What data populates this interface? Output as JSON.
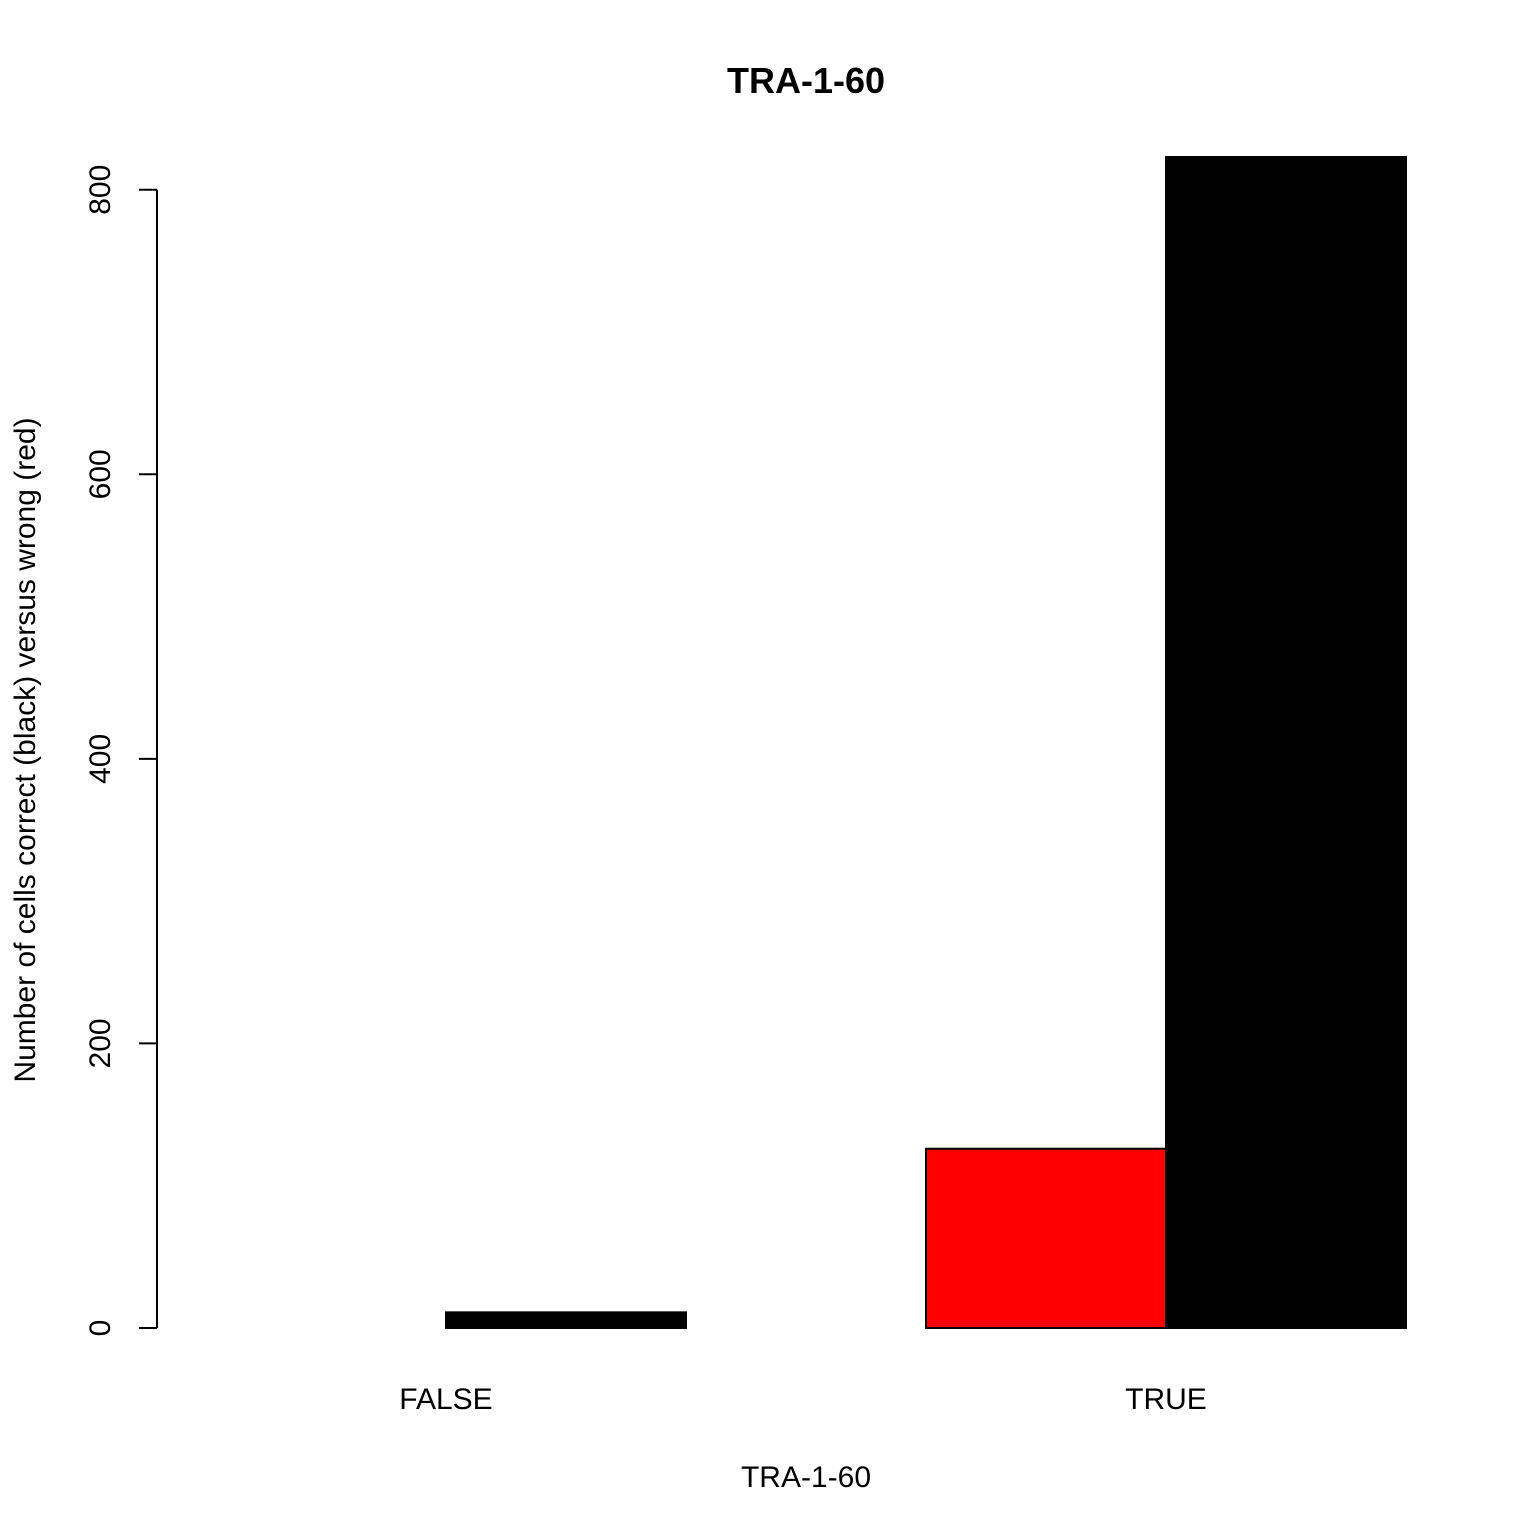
{
  "chart_data": {
    "type": "bar",
    "title": "TRA-1-60",
    "xlabel": "TRA-1-60",
    "ylabel": "Number of cells correct (black) versus wrong (red)",
    "categories": [
      "FALSE",
      "TRUE"
    ],
    "series": [
      {
        "color": "#ff0000",
        "values": [
          0,
          126
        ]
      },
      {
        "color": "#000000",
        "values": [
          11,
          823
        ]
      }
    ],
    "ylim": [
      0,
      823
    ],
    "yticks": [
      0,
      200,
      400,
      600,
      800
    ],
    "grid": false,
    "legend": "none"
  }
}
